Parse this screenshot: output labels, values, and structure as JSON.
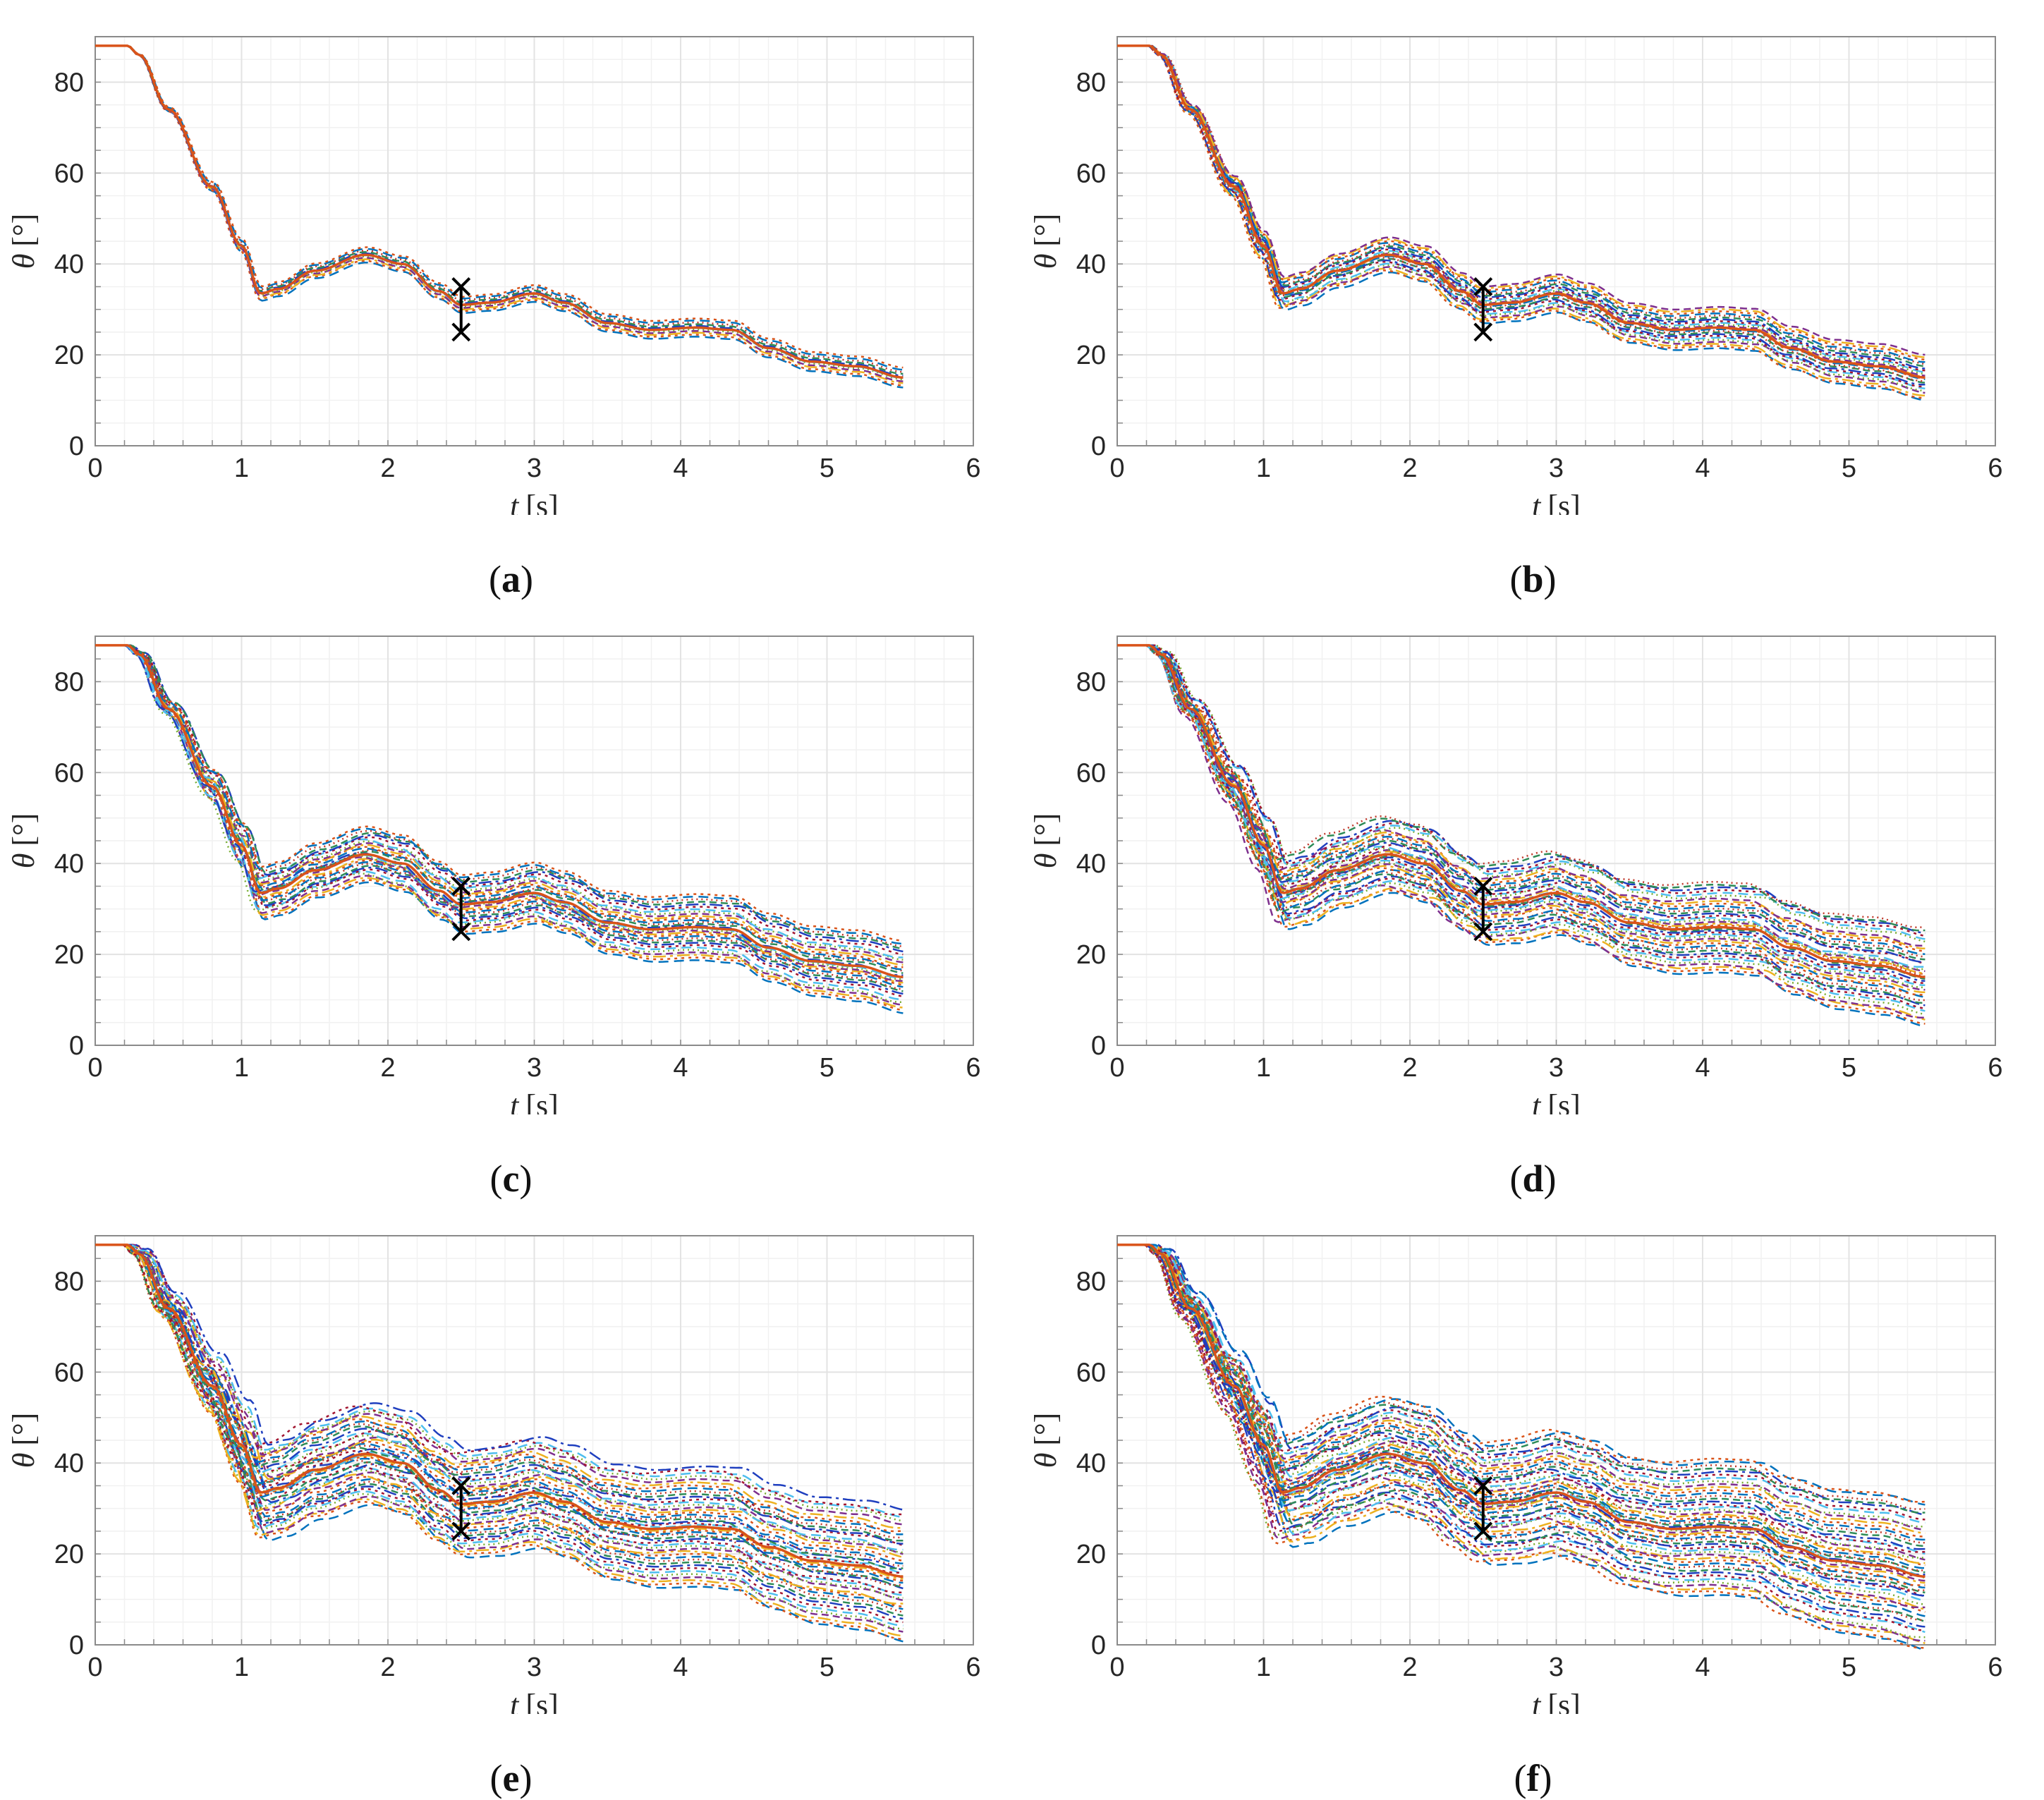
{
  "figure_panels": [
    {
      "id": "a",
      "caption": "a"
    },
    {
      "id": "b",
      "caption": "b"
    },
    {
      "id": "c",
      "caption": "c"
    },
    {
      "id": "d",
      "caption": "d"
    },
    {
      "id": "e",
      "caption": "e"
    },
    {
      "id": "f",
      "caption": "f"
    }
  ],
  "chart_data": [
    {
      "panel": "a",
      "type": "line",
      "xlabel_var": "t",
      "xlabel_unit": "[s]",
      "ylabel_var": "θ",
      "ylabel_unit": "[°]",
      "xlim": [
        0,
        6
      ],
      "ylim": [
        0,
        90
      ],
      "xticks": [
        0,
        1,
        2,
        3,
        4,
        5,
        6
      ],
      "yticks": [
        0,
        20,
        40,
        60,
        80
      ],
      "grid": true,
      "minor_grid": true,
      "nominal_curve": {
        "t": [
          0,
          0.22,
          0.3,
          0.5,
          0.8,
          1.0,
          1.13,
          1.25,
          1.5,
          1.85,
          2.1,
          2.35,
          2.5,
          2.7,
          3.0,
          3.2,
          3.5,
          3.8,
          4.1,
          4.35,
          4.6,
          4.9,
          5.2,
          5.53
        ],
        "theta": [
          88,
          88,
          86,
          74,
          57,
          44,
          33.5,
          34.5,
          38.5,
          42,
          40,
          34,
          31,
          31.5,
          33.5,
          31.5,
          27,
          25.5,
          26,
          25.5,
          21.5,
          18.5,
          17.5,
          15
        ]
      },
      "spread_at_end": 2.2,
      "num_curves": 12,
      "marker_time": 2.5,
      "marker_values": [
        35,
        25
      ]
    },
    {
      "panel": "b",
      "type": "line",
      "xlabel_var": "t",
      "xlabel_unit": "[s]",
      "ylabel_var": "θ",
      "ylabel_unit": "[°]",
      "xlim": [
        0,
        6
      ],
      "ylim": [
        0,
        90
      ],
      "xticks": [
        0,
        1,
        2,
        3,
        4,
        5,
        6
      ],
      "yticks": [
        0,
        20,
        40,
        60,
        80
      ],
      "grid": true,
      "minor_grid": true,
      "nominal_curve": {
        "t": [
          0,
          0.22,
          0.3,
          0.5,
          0.8,
          1.0,
          1.13,
          1.25,
          1.5,
          1.85,
          2.1,
          2.35,
          2.5,
          2.7,
          3.0,
          3.2,
          3.5,
          3.8,
          4.1,
          4.35,
          4.6,
          4.9,
          5.2,
          5.53
        ],
        "theta": [
          88,
          88,
          86,
          74,
          57,
          44,
          33.5,
          34.5,
          38.5,
          42,
          40,
          34,
          31,
          31.5,
          33.5,
          31.5,
          27,
          25.5,
          26,
          25.5,
          21.5,
          18.5,
          17.5,
          15
        ]
      },
      "spread_at_end": 5,
      "num_curves": 24,
      "marker_time": 2.5,
      "marker_values": [
        35,
        25
      ]
    },
    {
      "panel": "c",
      "type": "line",
      "xlabel_var": "t",
      "xlabel_unit": "[s]",
      "ylabel_var": "θ",
      "ylabel_unit": "[°]",
      "xlim": [
        0,
        6
      ],
      "ylim": [
        0,
        90
      ],
      "xticks": [
        0,
        1,
        2,
        3,
        4,
        5,
        6
      ],
      "yticks": [
        0,
        20,
        40,
        60,
        80
      ],
      "grid": true,
      "minor_grid": true,
      "nominal_curve": {
        "t": [
          0,
          0.22,
          0.3,
          0.5,
          0.8,
          1.0,
          1.13,
          1.25,
          1.5,
          1.85,
          2.1,
          2.35,
          2.5,
          2.7,
          3.0,
          3.2,
          3.5,
          3.8,
          4.1,
          4.35,
          4.6,
          4.9,
          5.2,
          5.53
        ],
        "theta": [
          88,
          88,
          86,
          74,
          57,
          44,
          33.5,
          34.5,
          38.5,
          42,
          40,
          34,
          31,
          31.5,
          33.5,
          31.5,
          27,
          25.5,
          26,
          25.5,
          21.5,
          18.5,
          17.5,
          15
        ]
      },
      "spread_at_end": 8,
      "num_curves": 32,
      "marker_time": 2.5,
      "marker_values": [
        35,
        25
      ]
    },
    {
      "panel": "d",
      "type": "line",
      "xlabel_var": "t",
      "xlabel_unit": "[s]",
      "ylabel_var": "θ",
      "ylabel_unit": "[°]",
      "xlim": [
        0,
        6
      ],
      "ylim": [
        0,
        90
      ],
      "xticks": [
        0,
        1,
        2,
        3,
        4,
        5,
        6
      ],
      "yticks": [
        0,
        20,
        40,
        60,
        80
      ],
      "grid": true,
      "minor_grid": true,
      "nominal_curve": {
        "t": [
          0,
          0.22,
          0.3,
          0.5,
          0.8,
          1.0,
          1.13,
          1.25,
          1.5,
          1.85,
          2.1,
          2.35,
          2.5,
          2.7,
          3.0,
          3.2,
          3.5,
          3.8,
          4.1,
          4.35,
          4.6,
          4.9,
          5.2,
          5.53
        ],
        "theta": [
          88,
          88,
          86,
          74,
          57,
          44,
          33.5,
          34.5,
          38.5,
          42,
          40,
          34,
          31,
          31.5,
          33.5,
          31.5,
          27,
          25.5,
          26,
          25.5,
          21.5,
          18.5,
          17.5,
          15
        ]
      },
      "spread_at_end": 11,
      "num_curves": 40,
      "marker_time": 2.5,
      "marker_values": [
        35,
        25
      ]
    },
    {
      "panel": "e",
      "type": "line",
      "xlabel_var": "t",
      "xlabel_unit": "[s]",
      "ylabel_var": "θ",
      "ylabel_unit": "[°]",
      "xlim": [
        0,
        6
      ],
      "ylim": [
        0,
        90
      ],
      "xticks": [
        0,
        1,
        2,
        3,
        4,
        5,
        6
      ],
      "yticks": [
        0,
        20,
        40,
        60,
        80
      ],
      "grid": true,
      "minor_grid": true,
      "nominal_curve": {
        "t": [
          0,
          0.22,
          0.3,
          0.5,
          0.8,
          1.0,
          1.13,
          1.25,
          1.5,
          1.85,
          2.1,
          2.35,
          2.5,
          2.7,
          3.0,
          3.2,
          3.5,
          3.8,
          4.1,
          4.35,
          4.6,
          4.9,
          5.2,
          5.53
        ],
        "theta": [
          88,
          88,
          86,
          74,
          57,
          44,
          33.5,
          34.5,
          38.5,
          42,
          40,
          34,
          31,
          31.5,
          33.5,
          31.5,
          27,
          25.5,
          26,
          25.5,
          21.5,
          18.5,
          17.5,
          15
        ]
      },
      "spread_at_end": 14.5,
      "num_curves": 48,
      "marker_time": 2.5,
      "marker_values": [
        35,
        25
      ]
    },
    {
      "panel": "f",
      "type": "line",
      "xlabel_var": "t",
      "xlabel_unit": "[s]",
      "ylabel_var": "θ",
      "ylabel_unit": "[°]",
      "xlim": [
        0,
        6
      ],
      "ylim": [
        0,
        90
      ],
      "xticks": [
        0,
        1,
        2,
        3,
        4,
        5,
        6
      ],
      "yticks": [
        0,
        20,
        40,
        60,
        80
      ],
      "grid": true,
      "minor_grid": true,
      "nominal_curve": {
        "t": [
          0,
          0.22,
          0.3,
          0.5,
          0.8,
          1.0,
          1.13,
          1.25,
          1.5,
          1.85,
          2.1,
          2.35,
          2.5,
          2.7,
          3.0,
          3.2,
          3.5,
          3.8,
          4.1,
          4.35,
          4.6,
          4.9,
          5.2,
          5.53
        ],
        "theta": [
          88,
          88,
          86,
          74,
          57,
          44,
          33.5,
          34.5,
          38.5,
          42,
          40,
          34,
          31,
          31.5,
          33.5,
          31.5,
          27,
          25.5,
          26,
          25.5,
          21.5,
          18.5,
          17.5,
          15
        ]
      },
      "spread_at_end": 16.5,
      "num_curves": 52,
      "marker_time": 2.5,
      "marker_values": [
        35,
        25
      ]
    }
  ],
  "series_colors": [
    "#0072BD",
    "#D95319",
    "#EDB120",
    "#7E2F8E",
    "#77AC30",
    "#4DBEEE",
    "#A2142F",
    "#1f3fbf",
    "#2e8b57",
    "#c0392b"
  ],
  "nominal_color": "#D95319",
  "marker_color": "#000000",
  "grid_color": "#e3e3e3",
  "minor_grid_color": "#f1f1f1",
  "axis_color": "#8a8a8a"
}
